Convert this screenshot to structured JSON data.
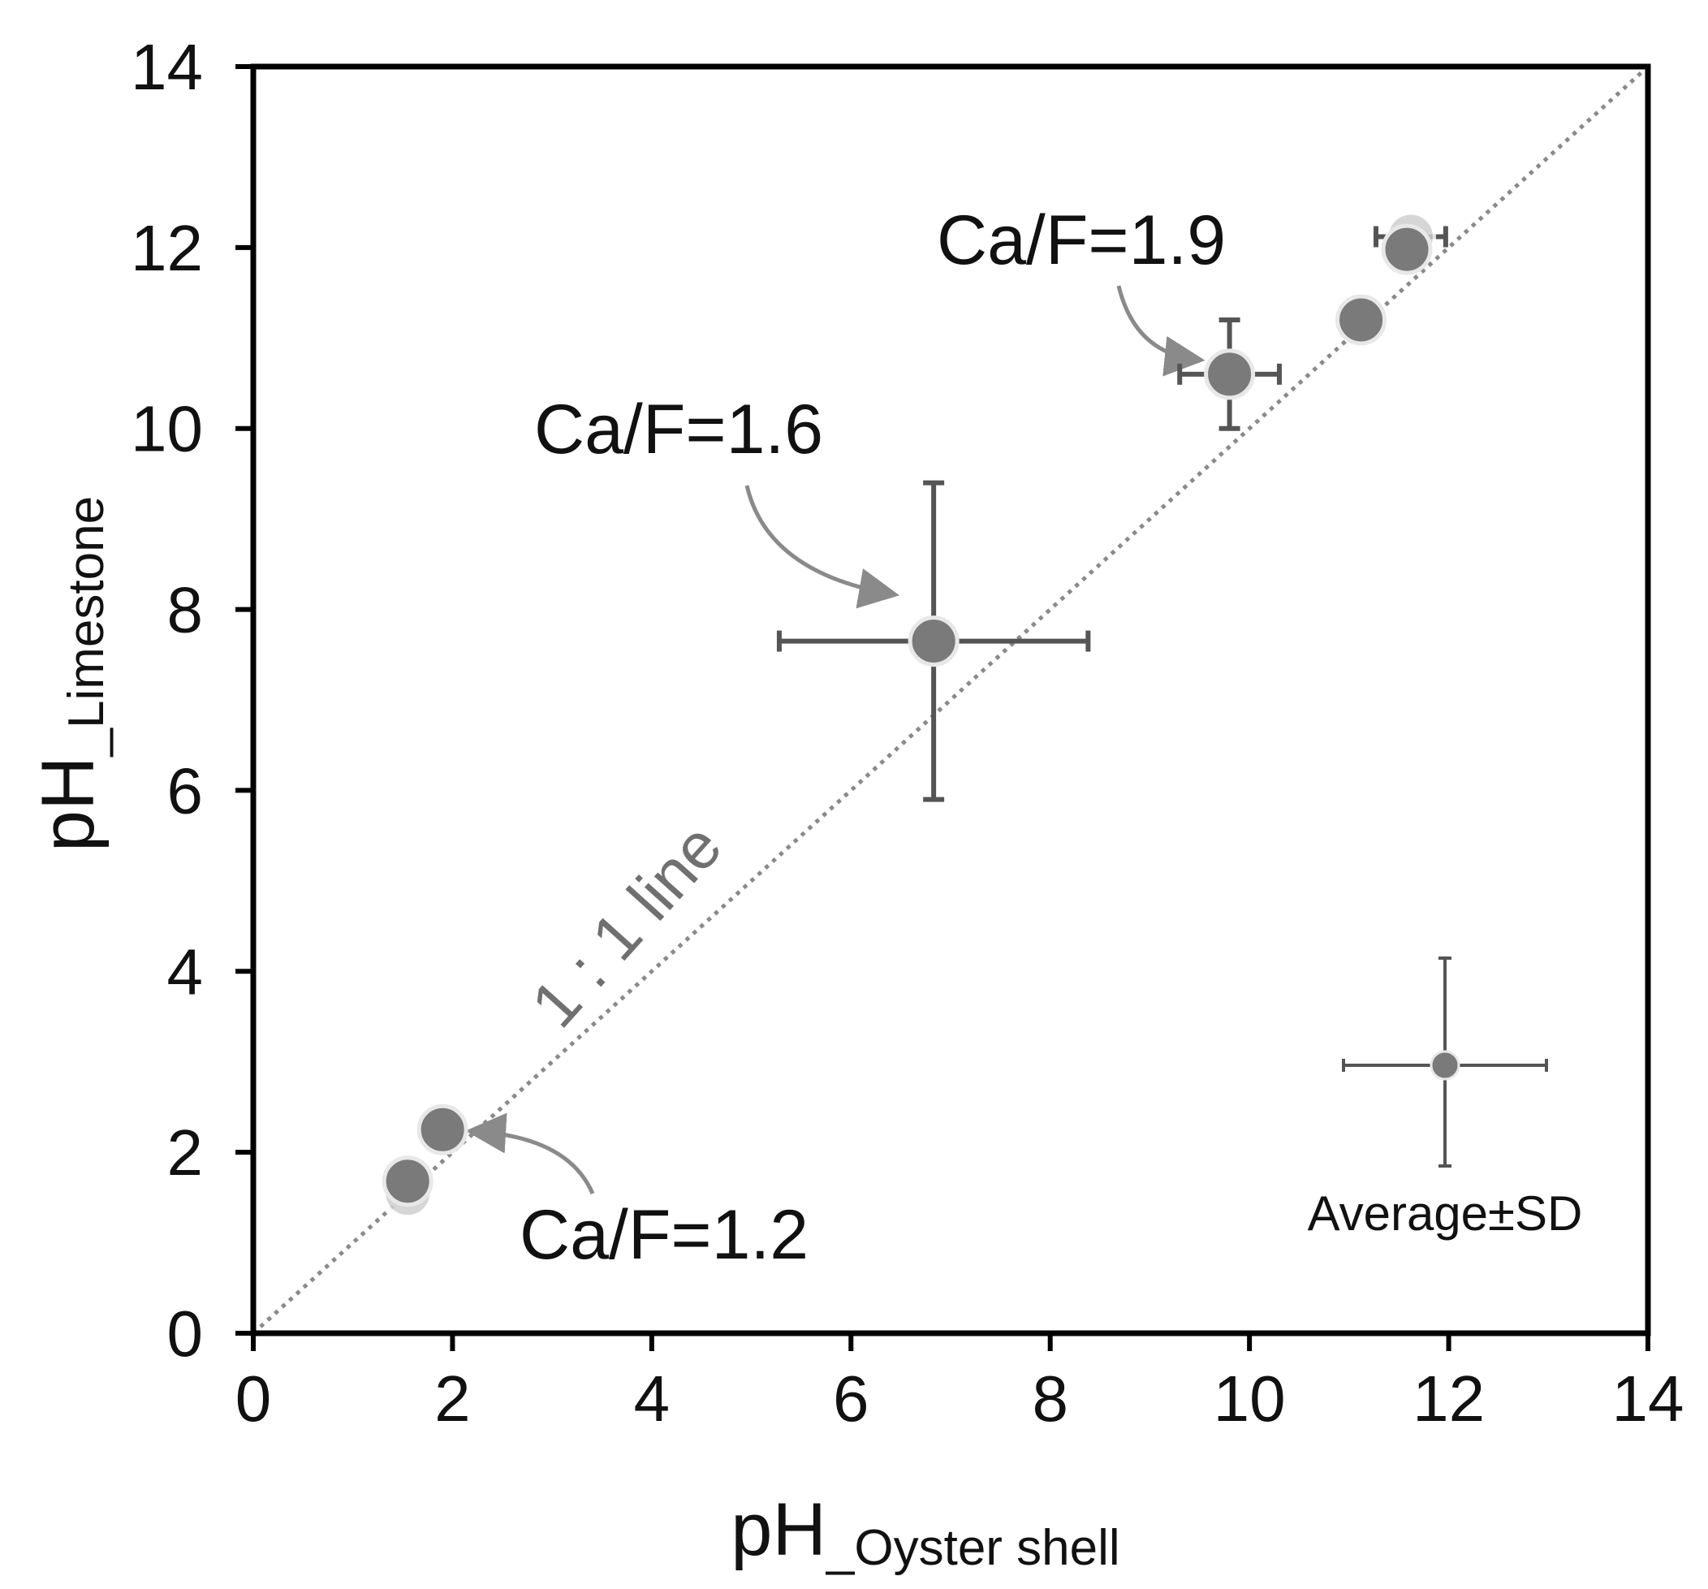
{
  "chart_data": {
    "type": "scatter",
    "xlabel": {
      "main": "pH",
      "sub": "_Oyster shell"
    },
    "ylabel": {
      "main": "pH",
      "sub": "_Limestone"
    },
    "xlim": [
      0,
      14
    ],
    "ylim": [
      0,
      14
    ],
    "xticks": [
      "0",
      "2",
      "4",
      "6",
      "8",
      "10",
      "12",
      "14"
    ],
    "yticks": [
      "0",
      "2",
      "4",
      "6",
      "8",
      "10",
      "12",
      "14"
    ],
    "grid": false,
    "reference_line": {
      "label": "1 : 1 line",
      "slope": 1,
      "intercept": 0
    },
    "points": [
      {
        "x": 1.55,
        "y": 1.55,
        "xerr": 0,
        "yerr": 0,
        "ghost": true
      },
      {
        "x": 1.55,
        "y": 1.68,
        "xerr": 0,
        "yerr": 0
      },
      {
        "x": 1.9,
        "y": 2.25,
        "xerr": 0,
        "yerr": 0
      },
      {
        "x": 6.83,
        "y": 7.65,
        "xerr": 1.55,
        "yerr": 1.75
      },
      {
        "x": 9.8,
        "y": 10.6,
        "xerr": 0.5,
        "yerr": 0.6
      },
      {
        "x": 11.12,
        "y": 11.2,
        "xerr": 0,
        "yerr": 0
      },
      {
        "x": 11.62,
        "y": 12.12,
        "xerr": 0.35,
        "yerr": 0,
        "ghost": true
      },
      {
        "x": 11.58,
        "y": 11.98,
        "xerr": 0,
        "yerr": 0
      }
    ],
    "annotations": [
      {
        "text": "Ca/F=1.6"
      },
      {
        "text": "Ca/F=1.9"
      },
      {
        "text": "Ca/F=1.2"
      }
    ],
    "legend": {
      "label": "Average±SD",
      "placement": "bottom-right"
    },
    "colors": {
      "marker": "#7a7a7a",
      "errorbar": "#555555",
      "reference": "#8a8a8a",
      "arrow": "#8a8a8a"
    }
  }
}
